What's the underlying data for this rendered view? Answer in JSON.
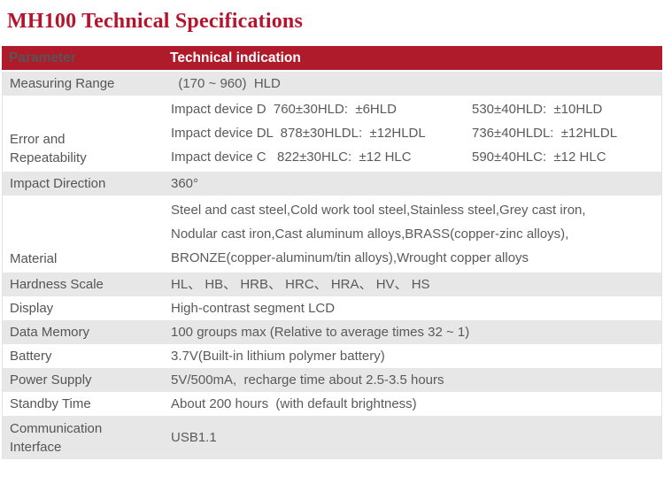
{
  "title": "MH100 Technical Specifications",
  "colors": {
    "title_red": "#B5152C",
    "header_bg": "#B01B2C",
    "header_text": "#FFFFFF",
    "row_alt_bg": "#E7E7E7",
    "body_text": "#5A5A5A"
  },
  "table": {
    "headers": {
      "param": "Parameter",
      "value": "Technical indication"
    },
    "rows": [
      {
        "param": "Measuring Range",
        "value": "  (170 ~ 960)  HLD"
      },
      {
        "param": "Error and Repeatability",
        "lines": [
          {
            "left": "Impact device D  760±30HLD:  ±6HLD",
            "right": "530±40HLD:  ±10HLD"
          },
          {
            "left": "Impact device DL  878±30HLDL:  ±12HLDL",
            "right": "736±40HLDL:  ±12HLDL"
          },
          {
            "left": "Impact device C   822±30HLC:  ±12 HLC",
            "right": "590±40HLC:  ±12 HLC"
          }
        ]
      },
      {
        "param": "Impact Direction",
        "value": "360°"
      },
      {
        "param": "Material",
        "lines": [
          "Steel and cast steel,Cold work tool steel,Stainless steel,Grey cast iron,",
          "Nodular cast iron,Cast aluminum alloys,BRASS(copper-zinc alloys),",
          "BRONZE(copper-aluminum/tin alloys),Wrought copper alloys"
        ]
      },
      {
        "param": "Hardness Scale",
        "value": "HL、 HB、 HRB、 HRC、 HRA、 HV、 HS"
      },
      {
        "param": "Display",
        "value": "High-contrast segment LCD"
      },
      {
        "param": "Data Memory",
        "value": "100 groups max (Relative to average times 32 ~ 1)"
      },
      {
        "param": "Battery",
        "value": "3.7V(Built-in lithium polymer battery)"
      },
      {
        "param": "Power Supply",
        "value": "5V/500mA,  recharge time about 2.5-3.5 hours"
      },
      {
        "param": "Standby Time",
        "value": "About 200 hours  (with default brightness)"
      },
      {
        "param": "Communication Interface",
        "value": "USB1.1"
      }
    ]
  }
}
